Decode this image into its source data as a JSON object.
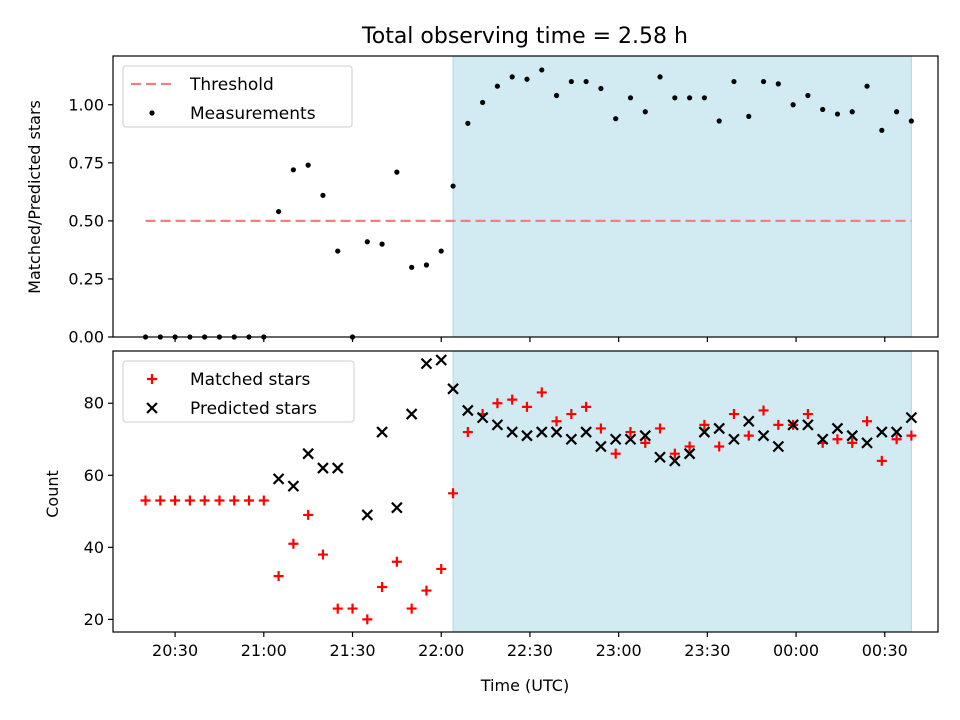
{
  "chart_data": [
    {
      "type": "scatter",
      "title": "Total observing time = 2.58 h",
      "xlabel": "",
      "ylabel": "Matched/Predicted stars",
      "ylim": [
        0.0,
        1.21
      ],
      "yticks": [
        "0.00",
        "0.25",
        "0.50",
        "0.75",
        "1.00"
      ],
      "highlight_span": {
        "x_start": "22:04",
        "x_end": "00:39",
        "color": "#add8e6"
      },
      "threshold": {
        "name": "Threshold",
        "y": 0.5,
        "x_start": "20:20",
        "x_end": "00:39",
        "color": "#f08080",
        "style": "dashed"
      },
      "legend": {
        "location": "upper left",
        "entries": [
          "Threshold",
          "Measurements"
        ]
      },
      "series": [
        {
          "name": "Measurements",
          "marker": "dot",
          "color": "#000000",
          "x": [
            "20:20",
            "20:25",
            "20:30",
            "20:35",
            "20:40",
            "20:45",
            "20:50",
            "20:55",
            "21:00",
            "21:05",
            "21:10",
            "21:15",
            "21:20",
            "21:25",
            "21:30",
            "21:35",
            "21:40",
            "21:45",
            "21:50",
            "21:55",
            "22:00",
            "22:04",
            "22:09",
            "22:14",
            "22:19",
            "22:24",
            "22:29",
            "22:34",
            "22:39",
            "22:44",
            "22:49",
            "22:54",
            "22:59",
            "23:04",
            "23:09",
            "23:14",
            "23:19",
            "23:24",
            "23:29",
            "23:34",
            "23:39",
            "23:44",
            "23:49",
            "23:54",
            "23:59",
            "00:04",
            "00:09",
            "00:14",
            "00:19",
            "00:24",
            "00:29",
            "00:34",
            "00:39"
          ],
          "y": [
            0.0,
            0.0,
            0.0,
            0.0,
            0.0,
            0.0,
            0.0,
            0.0,
            0.0,
            0.54,
            0.72,
            0.74,
            0.61,
            0.37,
            0.0,
            0.41,
            0.4,
            0.71,
            0.3,
            0.31,
            0.37,
            0.65,
            0.92,
            1.01,
            1.08,
            1.12,
            1.11,
            1.15,
            1.04,
            1.1,
            1.1,
            1.07,
            0.94,
            1.03,
            0.97,
            1.12,
            1.03,
            1.03,
            1.03,
            0.93,
            1.1,
            0.95,
            1.1,
            1.09,
            1.0,
            1.04,
            0.98,
            0.96,
            0.97,
            1.08,
            0.89,
            0.97,
            0.93
          ]
        }
      ]
    },
    {
      "type": "scatter",
      "xlabel": "Time (UTC)",
      "ylabel": "Count",
      "ylim": [
        16.5,
        94.5
      ],
      "yticks": [
        "20",
        "40",
        "60",
        "80"
      ],
      "xticks": [
        "20:30",
        "21:00",
        "21:30",
        "22:00",
        "22:30",
        "23:00",
        "23:30",
        "00:00",
        "00:30"
      ],
      "highlight_span": {
        "x_start": "22:04",
        "x_end": "00:39",
        "color": "#add8e6"
      },
      "legend": {
        "location": "upper left",
        "entries": [
          "Matched stars",
          "Predicted stars"
        ]
      },
      "series": [
        {
          "name": "Matched stars",
          "marker": "plus",
          "color": "#ff0000",
          "x": [
            "20:20",
            "20:25",
            "20:30",
            "20:35",
            "20:40",
            "20:45",
            "20:50",
            "20:55",
            "21:00",
            "21:05",
            "21:10",
            "21:15",
            "21:20",
            "21:25",
            "21:30",
            "21:35",
            "21:40",
            "21:45",
            "21:50",
            "21:55",
            "22:00",
            "22:04",
            "22:09",
            "22:14",
            "22:19",
            "22:24",
            "22:29",
            "22:34",
            "22:39",
            "22:44",
            "22:49",
            "22:54",
            "22:59",
            "23:04",
            "23:09",
            "23:14",
            "23:19",
            "23:24",
            "23:29",
            "23:34",
            "23:39",
            "23:44",
            "23:49",
            "23:54",
            "23:59",
            "00:04",
            "00:09",
            "00:14",
            "00:19",
            "00:24",
            "00:29",
            "00:34",
            "00:39"
          ],
          "y": [
            53,
            53,
            53,
            53,
            53,
            53,
            53,
            53,
            53,
            32,
            41,
            49,
            38,
            23,
            23,
            20,
            29,
            36,
            23,
            28,
            34,
            55,
            72,
            77,
            80,
            81,
            79,
            83,
            75,
            77,
            79,
            73,
            66,
            72,
            69,
            73,
            66,
            68,
            74,
            68,
            77,
            71,
            78,
            74,
            74,
            77,
            69,
            70,
            69,
            75,
            64,
            70,
            71
          ]
        },
        {
          "name": "Predicted stars",
          "marker": "x",
          "color": "#000000",
          "x": [
            "21:05",
            "21:10",
            "21:15",
            "21:20",
            "21:25",
            "21:35",
            "21:40",
            "21:45",
            "21:50",
            "21:55",
            "22:00",
            "22:04",
            "22:09",
            "22:14",
            "22:19",
            "22:24",
            "22:29",
            "22:34",
            "22:39",
            "22:44",
            "22:49",
            "22:54",
            "22:59",
            "23:04",
            "23:09",
            "23:14",
            "23:19",
            "23:24",
            "23:29",
            "23:34",
            "23:39",
            "23:44",
            "23:49",
            "23:54",
            "23:59",
            "00:04",
            "00:09",
            "00:14",
            "00:19",
            "00:24",
            "00:29",
            "00:34",
            "00:39"
          ],
          "y": [
            59,
            57,
            66,
            62,
            62,
            49,
            72,
            51,
            77,
            91,
            92,
            84,
            78,
            76,
            74,
            72,
            71,
            72,
            72,
            70,
            72,
            68,
            70,
            70,
            71,
            65,
            64,
            66,
            72,
            73,
            70,
            75,
            71,
            68,
            74,
            74,
            70,
            73,
            71,
            69,
            72,
            72,
            76
          ]
        }
      ]
    }
  ]
}
